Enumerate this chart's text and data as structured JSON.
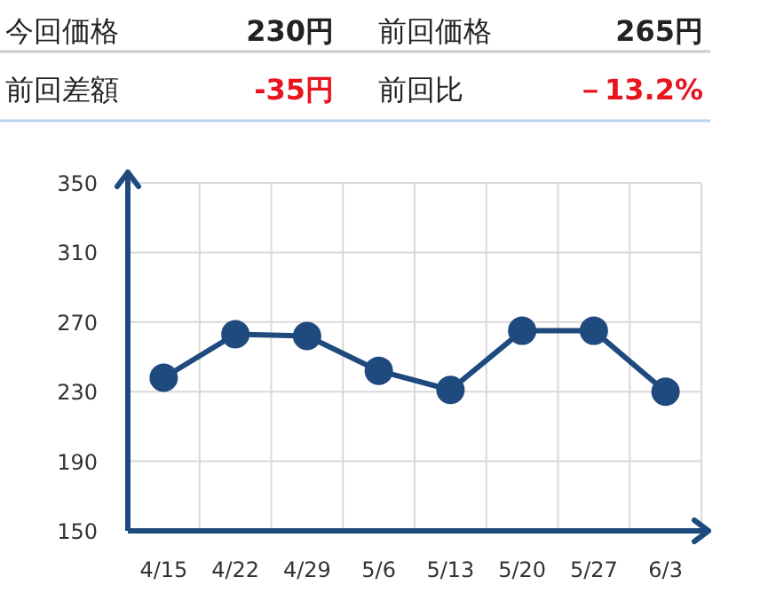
{
  "chart_data": [
    {
      "type": "other",
      "annotations": [
        "今回価格",
        "230円",
        "前回価格",
        "265円",
        "前回差額",
        "-35円",
        "前回比",
        "－13.2%"
      ]
    },
    {
      "type": "line",
      "categories": [
        "4/15",
        "4/22",
        "4/29",
        "5/6",
        "5/13",
        "5/20",
        "5/27",
        "6/3"
      ],
      "values": [
        238,
        263,
        262,
        242,
        231,
        265,
        265,
        230
      ],
      "color": "#1f4a7e",
      "ylim": [
        150,
        350
      ],
      "yticks": [
        150,
        190,
        230,
        270,
        310,
        350
      ],
      "grid": true,
      "marker": "circle",
      "line_style": "solid"
    }
  ]
}
